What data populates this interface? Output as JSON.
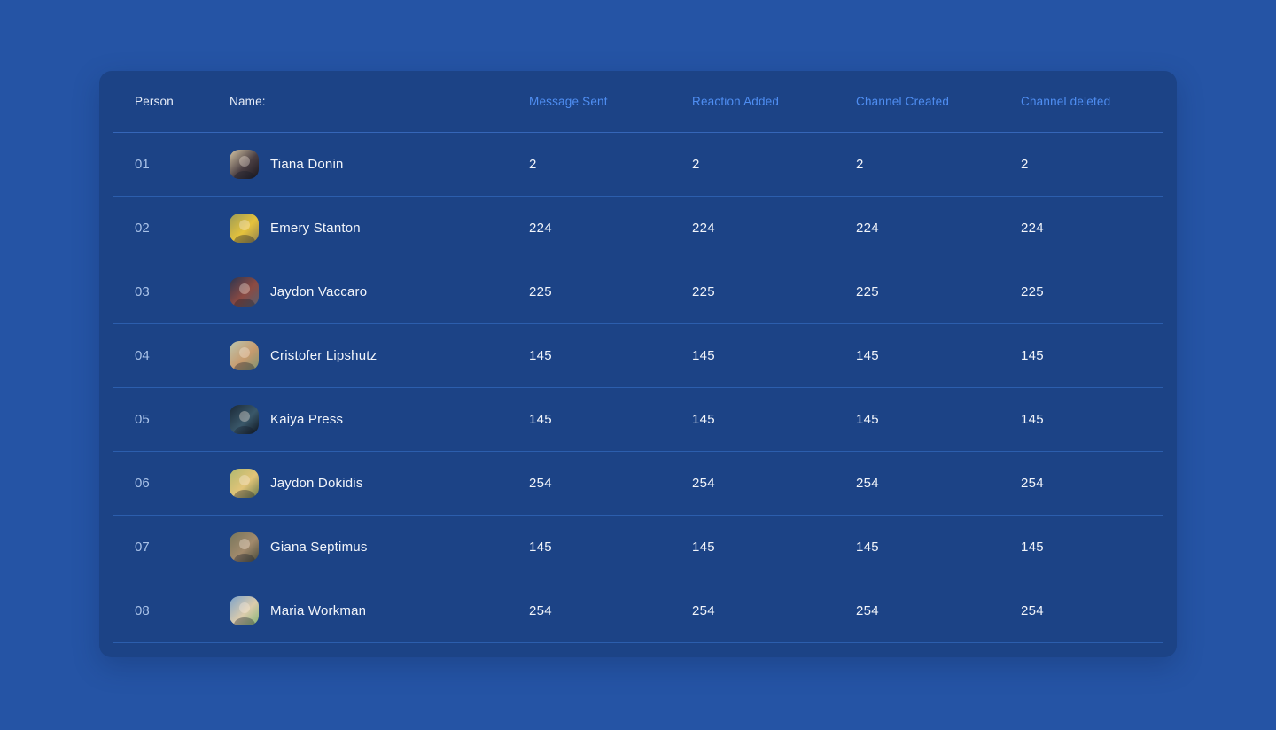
{
  "page": {
    "background_color": "#2554a5"
  },
  "card": {
    "background_color": "#1c4386",
    "divider_color": "#2c5ead",
    "header_divider_color": "#3566b8"
  },
  "colors": {
    "accent_header": "#4f8ef2",
    "text_primary": "#f2f5fa",
    "text_row_number": "#a9c2e8"
  },
  "table": {
    "columns": [
      {
        "id": "person",
        "label": "Person",
        "accent": false
      },
      {
        "id": "name",
        "label": "Name:",
        "accent": false
      },
      {
        "id": "message_sent",
        "label": "Message Sent",
        "accent": true
      },
      {
        "id": "reaction_added",
        "label": "Reaction Added",
        "accent": true
      },
      {
        "id": "channel_created",
        "label": "Channel Created",
        "accent": true
      },
      {
        "id": "channel_deleted",
        "label": "Channel deleted",
        "accent": true
      }
    ],
    "rows": [
      {
        "num": "01",
        "name": "Tiana Donin",
        "avatar": "tiana-donin-photo",
        "avatar_colors": [
          "#d6c6a6",
          "#4a3e42",
          "#17141c"
        ],
        "message_sent": "2",
        "reaction_added": "2",
        "channel_created": "2",
        "channel_deleted": "2"
      },
      {
        "num": "02",
        "name": "Emery Stanton",
        "avatar": "emery-stanton-photo",
        "avatar_colors": [
          "#9a9a58",
          "#e5c23c",
          "#8f8050"
        ],
        "message_sent": "224",
        "reaction_added": "224",
        "channel_created": "224",
        "channel_deleted": "224"
      },
      {
        "num": "03",
        "name": "Jaydon Vaccaro",
        "avatar": "jaydon-vaccaro-photo",
        "avatar_colors": [
          "#2a3550",
          "#8c4a42",
          "#566070"
        ],
        "message_sent": "225",
        "reaction_added": "225",
        "channel_created": "225",
        "channel_deleted": "225"
      },
      {
        "num": "04",
        "name": "Cristofer Lipshutz",
        "avatar": "cristofer-lipshutz-photo",
        "avatar_colors": [
          "#bcc6ae",
          "#c79b6f",
          "#7e9270"
        ],
        "message_sent": "145",
        "reaction_added": "145",
        "channel_created": "145",
        "channel_deleted": "145"
      },
      {
        "num": "05",
        "name": "Kaiya Press",
        "avatar": "kaiya-press-photo",
        "avatar_colors": [
          "#1a2836",
          "#3a586a",
          "#0d141e"
        ],
        "message_sent": "145",
        "reaction_added": "145",
        "channel_created": "145",
        "channel_deleted": "145"
      },
      {
        "num": "06",
        "name": "Jaydon Dokidis",
        "avatar": "jaydon-dokidis-photo",
        "avatar_colors": [
          "#b0b870",
          "#e2c478",
          "#66784a"
        ],
        "message_sent": "254",
        "reaction_added": "254",
        "channel_created": "254",
        "channel_deleted": "254"
      },
      {
        "num": "07",
        "name": "Giana Septimus",
        "avatar": "giana-septimus-photo",
        "avatar_colors": [
          "#77765c",
          "#a28a6c",
          "#474a3a"
        ],
        "message_sent": "145",
        "reaction_added": "145",
        "channel_created": "145",
        "channel_deleted": "145"
      },
      {
        "num": "08",
        "name": "Maria Workman",
        "avatar": "maria-workman-photo",
        "avatar_colors": [
          "#7ba2ca",
          "#dcccac",
          "#83b373"
        ],
        "message_sent": "254",
        "reaction_added": "254",
        "channel_created": "254",
        "channel_deleted": "254"
      }
    ]
  }
}
